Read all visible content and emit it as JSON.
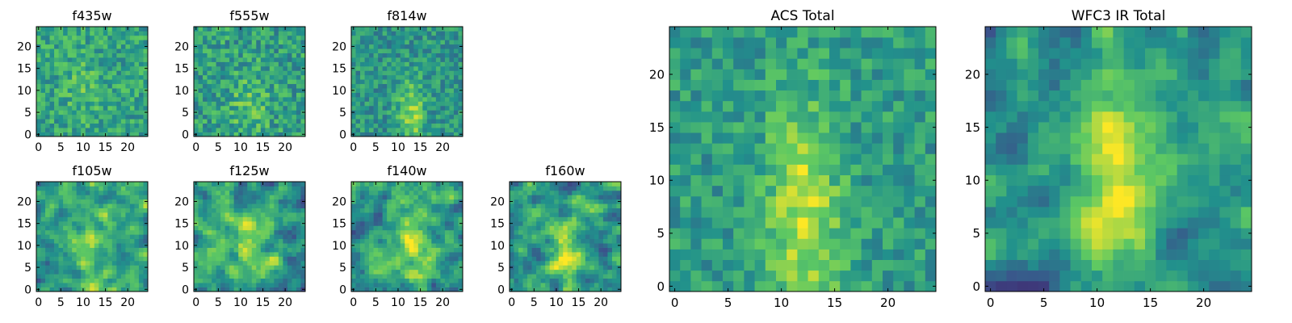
{
  "figure": {
    "background": "#ffffff"
  },
  "colormap": {
    "name": "viridis",
    "stops": [
      "#440154",
      "#3b528b",
      "#21918c",
      "#5ec962",
      "#fde725"
    ]
  },
  "chart_data": [
    {
      "type": "heatmap",
      "title": "f435w",
      "grid": false,
      "xlim": [
        -0.5,
        24.5
      ],
      "ylim": [
        -0.5,
        24.5
      ],
      "xticks": [
        0,
        5,
        10,
        15,
        20
      ],
      "yticks": [
        0,
        5,
        10,
        15,
        20
      ],
      "shape": [
        25,
        25
      ],
      "pattern": "noise",
      "base": 0.58,
      "signal": 0.1,
      "noise": 0.35,
      "seed": 11,
      "center": [
        10,
        11
      ],
      "sigma": [
        3,
        5
      ]
    },
    {
      "type": "heatmap",
      "title": "f555w",
      "grid": false,
      "xlim": [
        -0.5,
        24.5
      ],
      "ylim": [
        -0.5,
        24.5
      ],
      "xticks": [
        0,
        5,
        10,
        15,
        20
      ],
      "yticks": [
        0,
        5,
        10,
        15,
        20
      ],
      "shape": [
        25,
        25
      ],
      "pattern": "noise",
      "base": 0.56,
      "signal": 0.15,
      "noise": 0.38,
      "seed": 23,
      "center": [
        12,
        7
      ],
      "sigma": [
        3,
        5
      ]
    },
    {
      "type": "heatmap",
      "title": "f814w",
      "grid": false,
      "xlim": [
        -0.5,
        24.5
      ],
      "ylim": [
        -0.5,
        24.5
      ],
      "xticks": [
        0,
        5,
        10,
        15,
        20
      ],
      "yticks": [
        0,
        5,
        10,
        15,
        20
      ],
      "shape": [
        25,
        25
      ],
      "pattern": "noise",
      "base": 0.52,
      "signal": 0.32,
      "noise": 0.32,
      "seed": 37,
      "center": [
        13,
        5
      ],
      "sigma": [
        2,
        5
      ]
    },
    {
      "type": "heatmap",
      "title": "f105w",
      "grid": false,
      "xlim": [
        -0.5,
        24.5
      ],
      "ylim": [
        -0.5,
        24.5
      ],
      "xticks": [
        0,
        5,
        10,
        15,
        20
      ],
      "yticks": [
        0,
        5,
        10,
        15,
        20
      ],
      "shape": [
        25,
        25
      ],
      "pattern": "smooth",
      "base": 0.55,
      "signal": 0.25,
      "noise": 0.45,
      "seed": 41,
      "center": [
        12,
        10
      ],
      "sigma": [
        3,
        7
      ]
    },
    {
      "type": "heatmap",
      "title": "f125w",
      "grid": false,
      "xlim": [
        -0.5,
        24.5
      ],
      "ylim": [
        -0.5,
        24.5
      ],
      "xticks": [
        0,
        5,
        10,
        15,
        20
      ],
      "yticks": [
        0,
        5,
        10,
        15,
        20
      ],
      "shape": [
        25,
        25
      ],
      "pattern": "smooth",
      "base": 0.55,
      "signal": 0.25,
      "noise": 0.45,
      "seed": 53,
      "center": [
        12,
        10
      ],
      "sigma": [
        3,
        7
      ]
    },
    {
      "type": "heatmap",
      "title": "f140w",
      "grid": false,
      "xlim": [
        -0.5,
        24.5
      ],
      "ylim": [
        -0.5,
        24.5
      ],
      "xticks": [
        0,
        5,
        10,
        15,
        20
      ],
      "yticks": [
        0,
        5,
        10,
        15,
        20
      ],
      "shape": [
        25,
        25
      ],
      "pattern": "smooth",
      "base": 0.55,
      "signal": 0.3,
      "noise": 0.45,
      "seed": 67,
      "center": [
        13,
        10
      ],
      "sigma": [
        3,
        7
      ]
    },
    {
      "type": "heatmap",
      "title": "f160w",
      "grid": false,
      "xlim": [
        -0.5,
        24.5
      ],
      "ylim": [
        -0.5,
        24.5
      ],
      "xticks": [
        0,
        5,
        10,
        15,
        20
      ],
      "yticks": [
        0,
        5,
        10,
        15,
        20
      ],
      "shape": [
        25,
        25
      ],
      "pattern": "smooth",
      "base": 0.5,
      "signal": 0.32,
      "noise": 0.5,
      "seed": 71,
      "center": [
        13,
        8
      ],
      "sigma": [
        3,
        7
      ]
    },
    {
      "type": "heatmap",
      "title": "ACS Total",
      "grid": false,
      "xlim": [
        -0.5,
        24.5
      ],
      "ylim": [
        -0.5,
        24.5
      ],
      "xticks": [
        0,
        5,
        10,
        15,
        20
      ],
      "yticks": [
        0,
        5,
        10,
        15,
        20
      ],
      "shape": [
        25,
        25
      ],
      "pattern": "noise",
      "base": 0.55,
      "signal": 0.35,
      "noise": 0.3,
      "seed": 89,
      "center": [
        12,
        7
      ],
      "sigma": [
        2.5,
        7
      ]
    },
    {
      "type": "heatmap",
      "title": "WFC3 IR Total",
      "grid": false,
      "xlim": [
        -0.5,
        24.5
      ],
      "ylim": [
        -0.5,
        24.5
      ],
      "xticks": [
        0,
        5,
        10,
        15,
        20
      ],
      "yticks": [
        0,
        5,
        10,
        15,
        20
      ],
      "shape": [
        25,
        25
      ],
      "pattern": "smooth",
      "base": 0.5,
      "signal": 0.42,
      "noise": 0.36,
      "seed": 97,
      "center": [
        12,
        11
      ],
      "sigma": [
        2.5,
        8
      ]
    }
  ]
}
